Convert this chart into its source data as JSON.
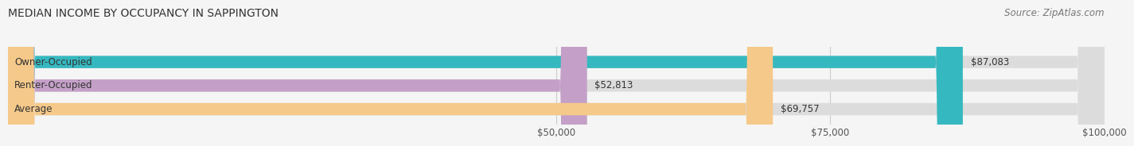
{
  "title": "MEDIAN INCOME BY OCCUPANCY IN SAPPINGTON",
  "source": "Source: ZipAtlas.com",
  "categories": [
    "Owner-Occupied",
    "Renter-Occupied",
    "Average"
  ],
  "values": [
    87083,
    52813,
    69757
  ],
  "bar_colors": [
    "#36b8c0",
    "#c4a0c8",
    "#f5c98a"
  ],
  "value_labels": [
    "$87,083",
    "$52,813",
    "$69,757"
  ],
  "xlim": [
    0,
    100000
  ],
  "xticks": [
    50000,
    75000,
    100000
  ],
  "xtick_labels": [
    "$50,000",
    "$75,000",
    "$100,000"
  ],
  "title_fontsize": 10,
  "source_fontsize": 8.5,
  "label_fontsize": 8.5,
  "bar_height": 0.52,
  "background_color": "#f5f5f5",
  "bg_bar_color": "#dcdcdc"
}
